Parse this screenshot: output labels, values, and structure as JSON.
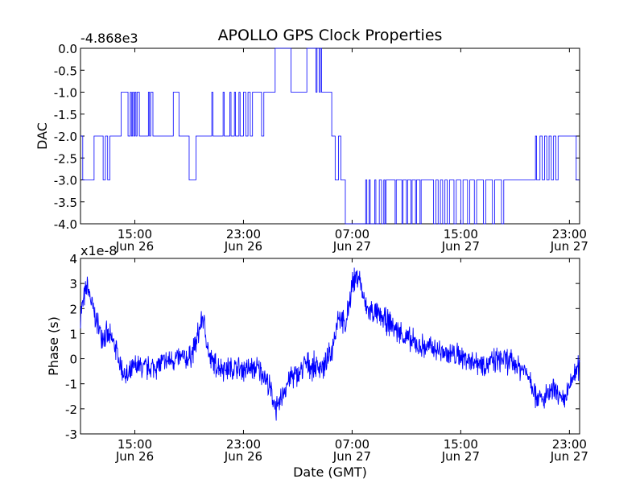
{
  "figure": {
    "title": "APOLLO GPS Clock Properties",
    "xlabel": "Date (GMT)",
    "line_color": "#0000ff"
  },
  "chart_data": [
    {
      "type": "line",
      "ylabel": "DAC",
      "offset_label": "-4.868e3",
      "ylim": [
        -4.0,
        0.0
      ],
      "yticks": [
        {
          "value": 0.0,
          "label": "0.0"
        },
        {
          "value": -0.5,
          "label": "-0.5"
        },
        {
          "value": -1.0,
          "label": "-1.0"
        },
        {
          "value": -1.5,
          "label": "-1.5"
        },
        {
          "value": -2.0,
          "label": "-2.0"
        },
        {
          "value": -2.5,
          "label": "-2.5"
        },
        {
          "value": -3.0,
          "label": "-3.0"
        },
        {
          "value": -3.5,
          "label": "-3.5"
        },
        {
          "value": -4.0,
          "label": "-4.0"
        }
      ],
      "xlim": [
        "Jun 26 11:00",
        "Jun 27 23:45"
      ],
      "xticks": [
        {
          "x": "Jun 26 15:00",
          "time": "15:00",
          "date": "Jun 26"
        },
        {
          "x": "Jun 26 23:00",
          "time": "23:00",
          "date": "Jun 26"
        },
        {
          "x": "Jun 27 07:00",
          "time": "07:00",
          "date": "Jun 27"
        },
        {
          "x": "Jun 27 15:00",
          "time": "15:00",
          "date": "Jun 27"
        },
        {
          "x": "Jun 27 23:00",
          "time": "23:00",
          "date": "Jun 27"
        }
      ],
      "series": [
        {
          "step": true,
          "points": [
            [
              "Jun 26 11:00",
              -2.0
            ],
            [
              "Jun 26 11:10",
              -3.0
            ],
            [
              "Jun 26 12:00",
              -2.0
            ],
            [
              "Jun 26 12:40",
              -3.0
            ],
            [
              "Jun 26 12:50",
              -2.0
            ],
            [
              "Jun 26 13:00",
              -3.0
            ],
            [
              "Jun 26 13:10",
              -2.0
            ],
            [
              "Jun 26 14:00",
              -1.0
            ],
            [
              "Jun 26 14:30",
              -2.0
            ],
            [
              "Jun 26 14:40",
              -1.0
            ],
            [
              "Jun 26 14:45",
              -2.0
            ],
            [
              "Jun 26 14:50",
              -1.0
            ],
            [
              "Jun 26 14:55",
              -2.0
            ],
            [
              "Jun 26 15:00",
              -1.0
            ],
            [
              "Jun 26 15:05",
              -2.0
            ],
            [
              "Jun 26 15:10",
              -1.0
            ],
            [
              "Jun 26 15:20",
              -2.0
            ],
            [
              "Jun 26 16:00",
              -1.0
            ],
            [
              "Jun 26 16:05",
              -2.0
            ],
            [
              "Jun 26 16:10",
              -1.0
            ],
            [
              "Jun 26 16:20",
              -2.0
            ],
            [
              "Jun 26 17:50",
              -1.0
            ],
            [
              "Jun 26 18:15",
              -2.0
            ],
            [
              "Jun 26 19:00",
              -3.0
            ],
            [
              "Jun 26 19:30",
              -2.0
            ],
            [
              "Jun 26 20:40",
              -1.0
            ],
            [
              "Jun 26 20:45",
              -2.0
            ],
            [
              "Jun 26 21:30",
              -1.0
            ],
            [
              "Jun 26 21:35",
              -2.0
            ],
            [
              "Jun 26 22:00",
              -1.0
            ],
            [
              "Jun 26 22:05",
              -2.0
            ],
            [
              "Jun 26 22:20",
              -1.0
            ],
            [
              "Jun 26 22:25",
              -2.0
            ],
            [
              "Jun 26 22:40",
              -1.0
            ],
            [
              "Jun 26 22:45",
              -2.0
            ],
            [
              "Jun 26 23:00",
              -1.0
            ],
            [
              "Jun 26 23:10",
              -2.0
            ],
            [
              "Jun 26 23:20",
              -1.0
            ],
            [
              "Jun 26 23:30",
              -2.0
            ],
            [
              "Jun 26 23:40",
              -1.0
            ],
            [
              "Jun 27 00:10",
              -1.0
            ],
            [
              "Jun 27 00:20",
              -2.0
            ],
            [
              "Jun 27 00:30",
              -1.0
            ],
            [
              "Jun 27 01:20",
              0.0
            ],
            [
              "Jun 27 02:30",
              -1.0
            ],
            [
              "Jun 27 03:40",
              0.0
            ],
            [
              "Jun 27 04:20",
              -1.0
            ],
            [
              "Jun 27 04:25",
              0.0
            ],
            [
              "Jun 27 04:35",
              -1.0
            ],
            [
              "Jun 27 04:40",
              0.0
            ],
            [
              "Jun 27 04:45",
              -1.0
            ],
            [
              "Jun 27 05:30",
              -2.0
            ],
            [
              "Jun 27 05:45",
              -3.0
            ],
            [
              "Jun 27 06:00",
              -2.0
            ],
            [
              "Jun 27 06:10",
              -3.0
            ],
            [
              "Jun 27 06:30",
              -4.0
            ],
            [
              "Jun 27 08:00",
              -3.0
            ],
            [
              "Jun 27 08:05",
              -4.0
            ],
            [
              "Jun 27 08:15",
              -3.0
            ],
            [
              "Jun 27 08:20",
              -4.0
            ],
            [
              "Jun 27 08:40",
              -3.0
            ],
            [
              "Jun 27 08:45",
              -4.0
            ],
            [
              "Jun 27 09:00",
              -3.0
            ],
            [
              "Jun 27 09:10",
              -4.0
            ],
            [
              "Jun 27 09:20",
              -3.0
            ],
            [
              "Jun 27 09:25",
              -4.0
            ],
            [
              "Jun 27 09:30",
              -3.0
            ],
            [
              "Jun 27 10:10",
              -4.0
            ],
            [
              "Jun 27 10:15",
              -3.0
            ],
            [
              "Jun 27 10:40",
              -4.0
            ],
            [
              "Jun 27 10:45",
              -3.0
            ],
            [
              "Jun 27 11:00",
              -4.0
            ],
            [
              "Jun 27 11:05",
              -3.0
            ],
            [
              "Jun 27 11:20",
              -4.0
            ],
            [
              "Jun 27 11:25",
              -3.0
            ],
            [
              "Jun 27 11:40",
              -4.0
            ],
            [
              "Jun 27 11:45",
              -3.0
            ],
            [
              "Jun 27 12:00",
              -4.0
            ],
            [
              "Jun 27 12:05",
              -3.0
            ],
            [
              "Jun 27 13:00",
              -4.0
            ],
            [
              "Jun 27 13:10",
              -3.0
            ],
            [
              "Jun 27 13:20",
              -4.0
            ],
            [
              "Jun 27 13:30",
              -3.0
            ],
            [
              "Jun 27 13:40",
              -4.0
            ],
            [
              "Jun 27 13:50",
              -3.0
            ],
            [
              "Jun 27 14:00",
              -4.0
            ],
            [
              "Jun 27 14:10",
              -3.0
            ],
            [
              "Jun 27 14:30",
              -4.0
            ],
            [
              "Jun 27 14:40",
              -3.0
            ],
            [
              "Jun 27 15:00",
              -4.0
            ],
            [
              "Jun 27 15:10",
              -3.0
            ],
            [
              "Jun 27 15:30",
              -4.0
            ],
            [
              "Jun 27 15:40",
              -3.0
            ],
            [
              "Jun 27 16:00",
              -4.0
            ],
            [
              "Jun 27 16:10",
              -3.0
            ],
            [
              "Jun 27 16:40",
              -4.0
            ],
            [
              "Jun 27 16:50",
              -3.0
            ],
            [
              "Jun 27 17:20",
              -4.0
            ],
            [
              "Jun 27 17:30",
              -3.0
            ],
            [
              "Jun 27 18:00",
              -4.0
            ],
            [
              "Jun 27 18:10",
              -3.0
            ],
            [
              "Jun 27 20:30",
              -2.0
            ],
            [
              "Jun 27 20:35",
              -3.0
            ],
            [
              "Jun 27 20:50",
              -2.0
            ],
            [
              "Jun 27 21:00",
              -3.0
            ],
            [
              "Jun 27 21:10",
              -2.0
            ],
            [
              "Jun 27 21:20",
              -3.0
            ],
            [
              "Jun 27 21:30",
              -2.0
            ],
            [
              "Jun 27 21:40",
              -3.0
            ],
            [
              "Jun 27 21:50",
              -2.0
            ],
            [
              "Jun 27 22:00",
              -3.0
            ],
            [
              "Jun 27 22:10",
              -2.0
            ],
            [
              "Jun 27 23:30",
              -3.0
            ],
            [
              "Jun 27 23:45",
              -3.0
            ]
          ]
        }
      ]
    },
    {
      "type": "line",
      "ylabel": "Phase (s)",
      "offset_label": "x1e-8",
      "ylim": [
        -3,
        4
      ],
      "yticks": [
        {
          "value": 4,
          "label": "4"
        },
        {
          "value": 3,
          "label": "3"
        },
        {
          "value": 2,
          "label": "2"
        },
        {
          "value": 1,
          "label": "1"
        },
        {
          "value": 0,
          "label": "0"
        },
        {
          "value": -1,
          "label": "-1"
        },
        {
          "value": -2,
          "label": "-2"
        },
        {
          "value": -3,
          "label": "-3"
        }
      ],
      "xlim": [
        "Jun 26 11:00",
        "Jun 27 23:45"
      ],
      "xticks": [
        {
          "x": "Jun 26 15:00",
          "time": "15:00",
          "date": "Jun 26"
        },
        {
          "x": "Jun 26 23:00",
          "time": "23:00",
          "date": "Jun 26"
        },
        {
          "x": "Jun 27 07:00",
          "time": "07:00",
          "date": "Jun 27"
        },
        {
          "x": "Jun 27 15:00",
          "time": "15:00",
          "date": "Jun 27"
        },
        {
          "x": "Jun 27 23:00",
          "time": "23:00",
          "date": "Jun 27"
        }
      ],
      "series": [
        {
          "noise_amplitude": 0.45,
          "points": [
            [
              "Jun 26 11:00",
              1.8
            ],
            [
              "Jun 26 11:30",
              2.9
            ],
            [
              "Jun 26 12:00",
              1.8
            ],
            [
              "Jun 26 12:30",
              1.0
            ],
            [
              "Jun 26 13:00",
              0.9
            ],
            [
              "Jun 26 13:30",
              0.6
            ],
            [
              "Jun 26 14:00",
              -0.4
            ],
            [
              "Jun 26 14:30",
              -0.8
            ],
            [
              "Jun 26 15:00",
              -0.3
            ],
            [
              "Jun 26 16:00",
              -0.4
            ],
            [
              "Jun 26 17:00",
              -0.2
            ],
            [
              "Jun 26 18:00",
              0.0
            ],
            [
              "Jun 26 19:00",
              0.0
            ],
            [
              "Jun 26 19:30",
              0.6
            ],
            [
              "Jun 26 20:00",
              1.7
            ],
            [
              "Jun 26 20:30",
              0.0
            ],
            [
              "Jun 26 21:00",
              -0.3
            ],
            [
              "Jun 26 22:00",
              -0.4
            ],
            [
              "Jun 26 23:00",
              -0.4
            ],
            [
              "Jun 27 00:00",
              -0.4
            ],
            [
              "Jun 27 00:30",
              -0.6
            ],
            [
              "Jun 27 01:00",
              -1.3
            ],
            [
              "Jun 27 01:30",
              -2.1
            ],
            [
              "Jun 27 02:00",
              -1.2
            ],
            [
              "Jun 27 02:30",
              -0.7
            ],
            [
              "Jun 27 03:00",
              -0.7
            ],
            [
              "Jun 27 03:30",
              -0.2
            ],
            [
              "Jun 27 04:00",
              -0.3
            ],
            [
              "Jun 27 05:00",
              -0.3
            ],
            [
              "Jun 27 05:30",
              0.3
            ],
            [
              "Jun 27 06:00",
              1.8
            ],
            [
              "Jun 27 06:30",
              1.2
            ],
            [
              "Jun 27 07:00",
              3.0
            ],
            [
              "Jun 27 07:30",
              3.3
            ],
            [
              "Jun 27 08:00",
              2.0
            ],
            [
              "Jun 27 09:00",
              1.7
            ],
            [
              "Jun 27 10:00",
              1.3
            ],
            [
              "Jun 27 11:00",
              0.8
            ],
            [
              "Jun 27 12:00",
              0.5
            ],
            [
              "Jun 27 13:00",
              0.4
            ],
            [
              "Jun 27 14:00",
              0.2
            ],
            [
              "Jun 27 15:00",
              0.1
            ],
            [
              "Jun 27 16:00",
              -0.1
            ],
            [
              "Jun 27 17:00",
              -0.2
            ],
            [
              "Jun 27 18:00",
              0.0
            ],
            [
              "Jun 27 19:00",
              -0.2
            ],
            [
              "Jun 27 20:00",
              -0.6
            ],
            [
              "Jun 27 20:30",
              -1.4
            ],
            [
              "Jun 27 21:00",
              -1.7
            ],
            [
              "Jun 27 21:30",
              -1.4
            ],
            [
              "Jun 27 22:00",
              -1.3
            ],
            [
              "Jun 27 22:30",
              -1.8
            ],
            [
              "Jun 27 23:00",
              -1.2
            ],
            [
              "Jun 27 23:20",
              -0.6
            ],
            [
              "Jun 27 23:45",
              -0.3
            ]
          ]
        }
      ]
    }
  ]
}
